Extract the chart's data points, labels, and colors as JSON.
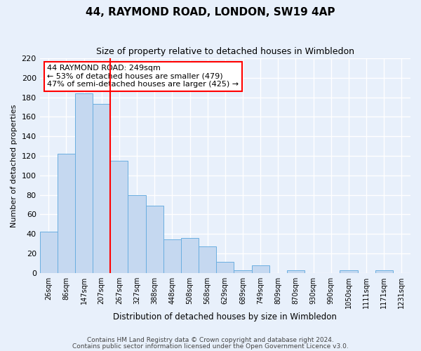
{
  "title": "44, RAYMOND ROAD, LONDON, SW19 4AP",
  "subtitle": "Size of property relative to detached houses in Wimbledon",
  "xlabel": "Distribution of detached houses by size in Wimbledon",
  "ylabel": "Number of detached properties",
  "bar_labels": [
    "26sqm",
    "86sqm",
    "147sqm",
    "207sqm",
    "267sqm",
    "327sqm",
    "388sqm",
    "448sqm",
    "508sqm",
    "568sqm",
    "629sqm",
    "689sqm",
    "749sqm",
    "809sqm",
    "870sqm",
    "930sqm",
    "990sqm",
    "1050sqm",
    "1111sqm",
    "1171sqm",
    "1231sqm"
  ],
  "bar_values": [
    42,
    122,
    184,
    173,
    115,
    80,
    69,
    34,
    36,
    27,
    11,
    3,
    8,
    0,
    3,
    0,
    0,
    3,
    0,
    3,
    0
  ],
  "bar_color": "#c5d8f0",
  "bar_edge_color": "#6aaee0",
  "property_line_x": 4.0,
  "property_line_label": "44 RAYMOND ROAD: 249sqm",
  "annotation_line1": "← 53% of detached houses are smaller (479)",
  "annotation_line2": "47% of semi-detached houses are larger (425) →",
  "ylim": [
    0,
    220
  ],
  "yticks": [
    0,
    20,
    40,
    60,
    80,
    100,
    120,
    140,
    160,
    180,
    200,
    220
  ],
  "footer1": "Contains HM Land Registry data © Crown copyright and database right 2024.",
  "footer2": "Contains public sector information licensed under the Open Government Licence v3.0.",
  "bg_color": "#e8f0fb",
  "plot_bg_color": "#e8f0fb",
  "grid_color": "#ffffff"
}
